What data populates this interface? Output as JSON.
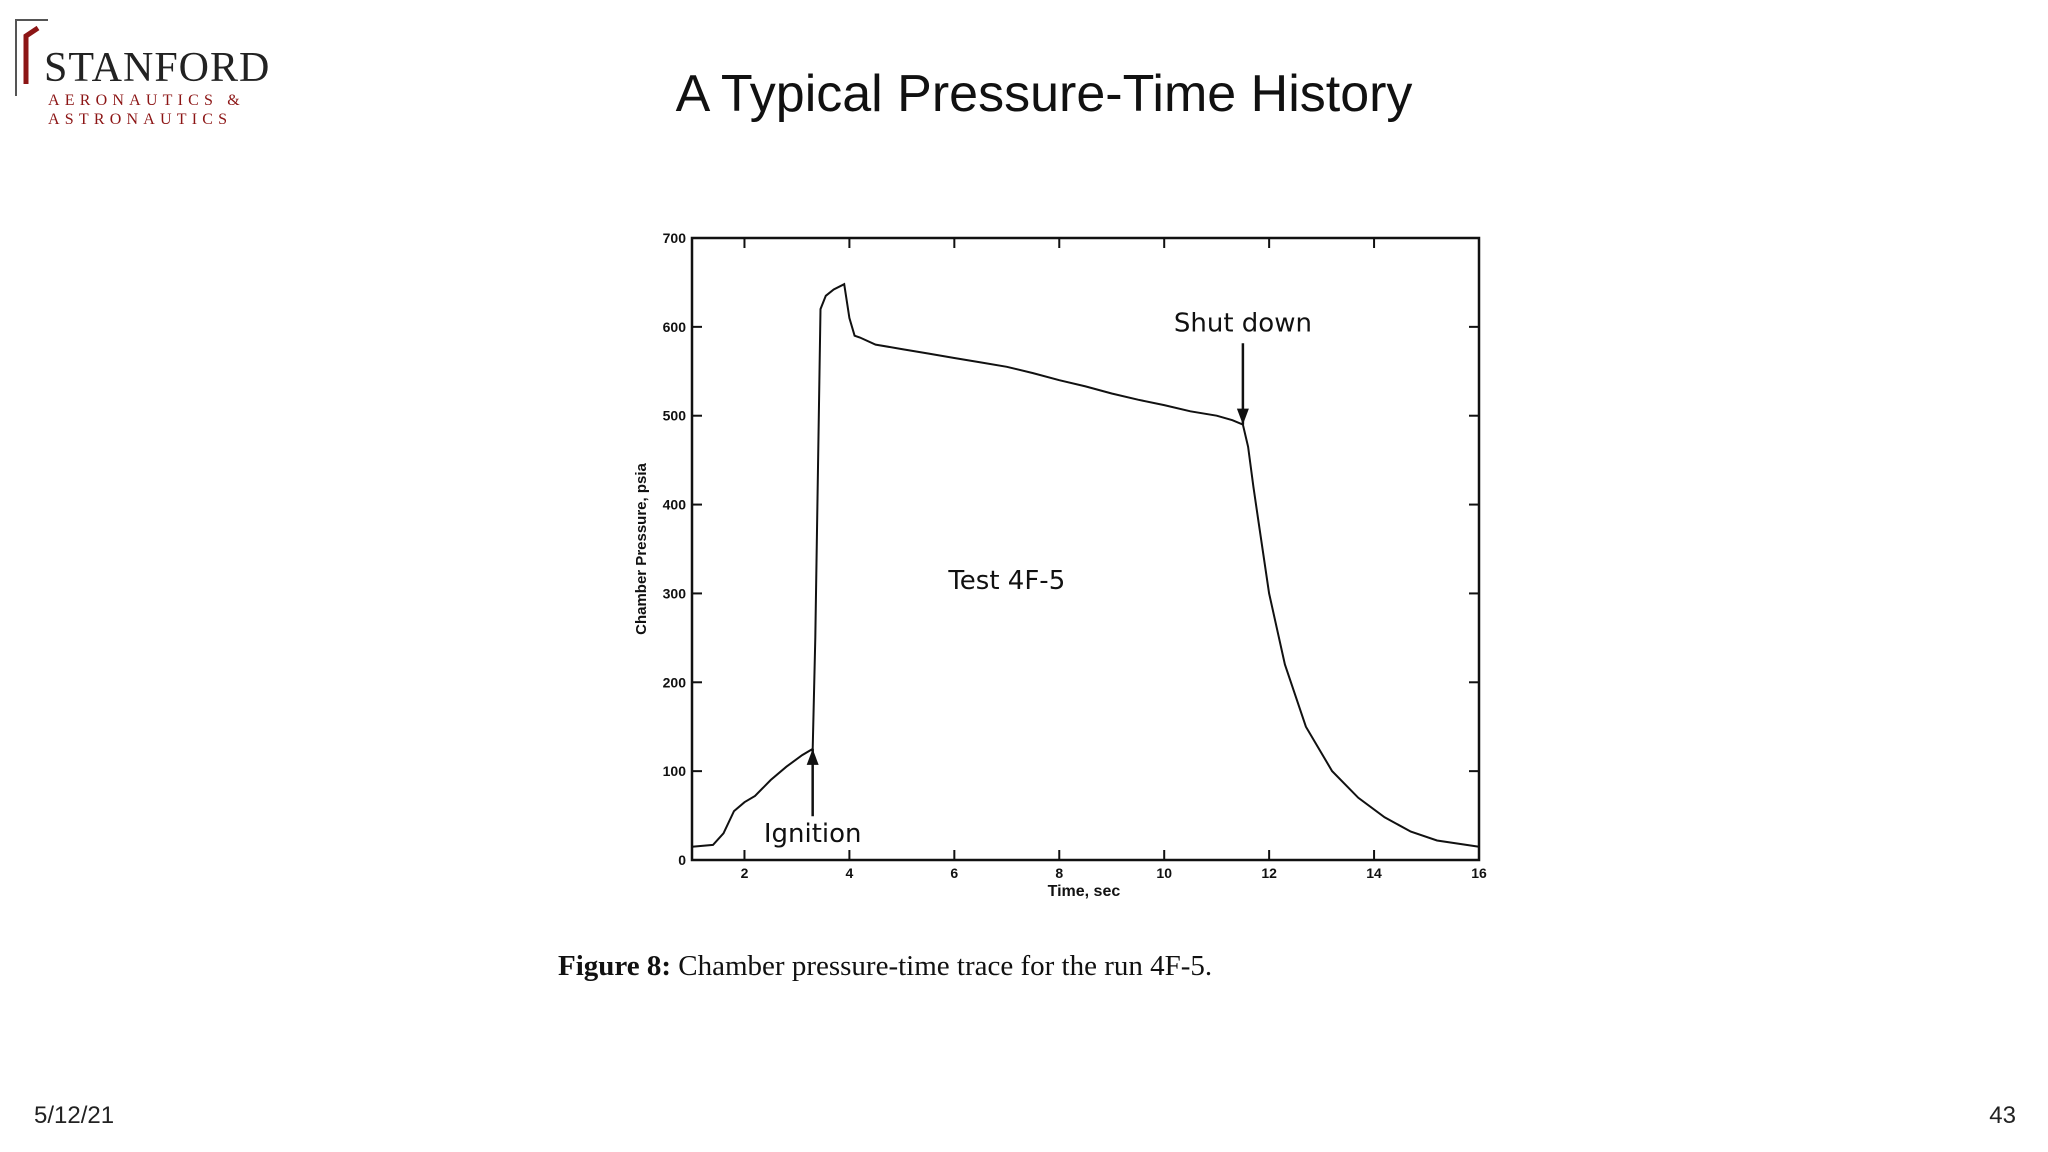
{
  "logo": {
    "main": "STANFORD",
    "line1": "AERONAUTICS &",
    "line2": "ASTRONAUTICS",
    "accent_color": "#8c1515"
  },
  "slide": {
    "title": "A Typical Pressure-Time History",
    "date": "5/12/21",
    "page": "43"
  },
  "caption": {
    "bold": "Figure 8:",
    "text": " Chamber pressure-time trace for the run 4F-5."
  },
  "chart_data": {
    "type": "line",
    "title": "",
    "xlabel": "Time, sec",
    "ylabel": "Chamber Pressure, psia",
    "xlim": [
      1,
      16
    ],
    "ylim": [
      0,
      700
    ],
    "xticks": [
      2,
      4,
      6,
      8,
      10,
      12,
      14,
      16
    ],
    "yticks": [
      0,
      100,
      200,
      300,
      400,
      500,
      600,
      700
    ],
    "grid": false,
    "legend": "none",
    "annotations": [
      {
        "text": "Test 4F-5",
        "x": 7.0,
        "y": 305
      },
      {
        "text": "Shut down",
        "x": 11.5,
        "y": 595,
        "arrow_to": [
          11.5,
          490
        ]
      },
      {
        "text": "Ignition",
        "x": 3.3,
        "y": 20,
        "arrow_to": [
          3.3,
          125
        ]
      }
    ],
    "series": [
      {
        "x": [
          1.0,
          1.4,
          1.6,
          1.8,
          2.0,
          2.2,
          2.5,
          2.8,
          3.1,
          3.3,
          3.35,
          3.45,
          3.55,
          3.7,
          3.9,
          4.0,
          4.1,
          4.2,
          4.5,
          5.0,
          5.5,
          6.0,
          6.5,
          7.0,
          7.5,
          8.0,
          8.5,
          9.0,
          9.5,
          10.0,
          10.5,
          11.0,
          11.3,
          11.5,
          11.6,
          11.7,
          11.8,
          12.0,
          12.3,
          12.7,
          13.2,
          13.7,
          14.2,
          14.7,
          15.2,
          16.0
        ],
        "y": [
          15,
          17,
          30,
          55,
          65,
          72,
          90,
          105,
          118,
          125,
          250,
          620,
          635,
          642,
          648,
          610,
          590,
          588,
          580,
          575,
          570,
          565,
          560,
          555,
          548,
          540,
          533,
          525,
          518,
          512,
          505,
          500,
          495,
          490,
          465,
          420,
          380,
          300,
          220,
          150,
          100,
          70,
          48,
          32,
          22,
          15
        ]
      }
    ]
  }
}
